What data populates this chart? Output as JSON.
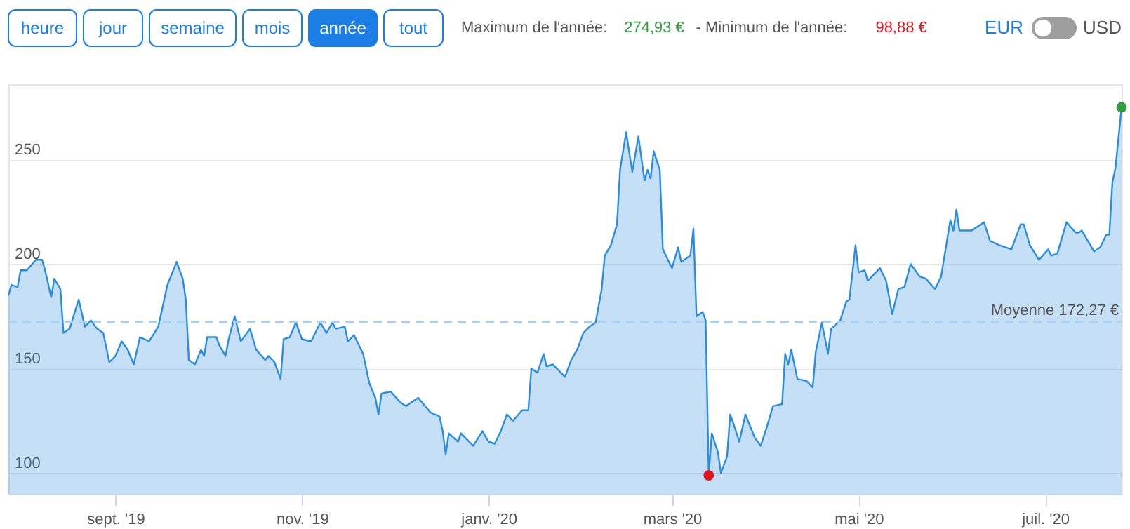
{
  "chart_data": {
    "type": "area",
    "x": [
      "2019-07-28",
      "2019-07-29",
      "2019-07-31",
      "2019-08-01",
      "2019-08-03",
      "2019-08-06",
      "2019-08-08",
      "2019-08-09",
      "2019-08-11",
      "2019-08-12",
      "2019-08-14",
      "2019-08-15",
      "2019-08-17",
      "2019-08-20",
      "2019-08-22",
      "2019-08-24",
      "2019-08-26",
      "2019-08-28",
      "2019-08-30",
      "2019-09-01",
      "2019-09-03",
      "2019-09-05",
      "2019-09-07",
      "2019-09-09",
      "2019-09-12",
      "2019-09-15",
      "2019-09-18",
      "2019-09-21",
      "2019-09-23",
      "2019-09-24",
      "2019-09-25",
      "2019-09-27",
      "2019-09-29",
      "2019-09-30",
      "2019-10-01",
      "2019-10-04",
      "2019-10-05",
      "2019-10-07",
      "2019-10-08",
      "2019-10-10",
      "2019-10-12",
      "2019-10-15",
      "2019-10-17",
      "2019-10-20",
      "2019-10-21",
      "2019-10-23",
      "2019-10-25",
      "2019-10-26",
      "2019-10-28",
      "2019-10-30",
      "2019-11-01",
      "2019-11-04",
      "2019-11-07",
      "2019-11-09",
      "2019-11-11",
      "2019-11-12",
      "2019-11-15",
      "2019-11-16",
      "2019-11-18",
      "2019-11-20",
      "2019-11-21",
      "2019-11-23",
      "2019-11-25",
      "2019-11-26",
      "2019-11-27",
      "2019-11-30",
      "2019-12-03",
      "2019-12-05",
      "2019-12-09",
      "2019-12-13",
      "2019-12-16",
      "2019-12-17",
      "2019-12-18",
      "2019-12-19",
      "2019-12-22",
      "2019-12-23",
      "2019-12-27",
      "2019-12-30",
      "2020-01-01",
      "2020-01-03",
      "2020-01-05",
      "2020-01-07",
      "2020-01-09",
      "2020-01-12",
      "2020-01-14",
      "2020-01-15",
      "2020-01-17",
      "2020-01-19",
      "2020-01-20",
      "2020-01-22",
      "2020-01-26",
      "2020-01-28",
      "2020-01-30",
      "2020-02-01",
      "2020-02-03",
      "2020-02-05",
      "2020-02-07",
      "2020-02-08",
      "2020-02-10",
      "2020-02-12",
      "2020-02-13",
      "2020-02-15",
      "2020-02-17",
      "2020-02-19",
      "2020-02-21",
      "2020-02-22",
      "2020-02-23",
      "2020-02-24",
      "2020-02-26",
      "2020-02-27",
      "2020-03-01",
      "2020-03-03",
      "2020-03-04",
      "2020-03-07",
      "2020-03-08",
      "2020-03-09",
      "2020-03-11",
      "2020-03-12",
      "2020-03-13",
      "2020-03-14",
      "2020-03-16",
      "2020-03-17",
      "2020-03-19",
      "2020-03-20",
      "2020-03-21",
      "2020-03-23",
      "2020-03-25",
      "2020-03-28",
      "2020-03-30",
      "2020-04-01",
      "2020-04-03",
      "2020-04-06",
      "2020-04-07",
      "2020-04-08",
      "2020-04-09",
      "2020-04-11",
      "2020-04-14",
      "2020-04-16",
      "2020-04-17",
      "2020-04-19",
      "2020-04-21",
      "2020-04-22",
      "2020-04-25",
      "2020-04-27",
      "2020-04-28",
      "2020-04-30",
      "2020-05-01",
      "2020-05-03",
      "2020-05-04",
      "2020-05-08",
      "2020-05-10",
      "2020-05-12",
      "2020-05-14",
      "2020-05-16",
      "2020-05-18",
      "2020-05-21",
      "2020-05-23",
      "2020-05-26",
      "2020-05-28",
      "2020-05-31",
      "2020-06-01",
      "2020-06-02",
      "2020-06-03",
      "2020-06-07",
      "2020-06-11",
      "2020-06-13",
      "2020-06-16",
      "2020-06-20",
      "2020-06-23",
      "2020-06-24",
      "2020-06-26",
      "2020-06-29",
      "2020-07-02",
      "2020-07-03",
      "2020-07-05",
      "2020-07-08",
      "2020-07-11",
      "2020-07-12",
      "2020-07-13",
      "2020-07-17",
      "2020-07-19",
      "2020-07-21",
      "2020-07-22",
      "2020-07-23",
      "2020-07-24",
      "2020-07-26"
    ],
    "series": [
      {
        "color": "#2b8de0",
        "values": [
          185,
          190,
          189,
          197,
          197,
          202,
          202,
          197,
          184,
          193,
          188,
          167,
          169,
          183,
          170,
          173,
          169,
          167,
          153,
          156,
          163,
          159,
          152,
          165,
          163,
          170,
          190,
          201,
          193,
          183,
          154,
          152,
          159,
          156,
          165,
          165,
          161,
          156,
          164,
          175,
          163,
          169,
          159,
          154,
          156,
          153,
          145,
          164,
          165,
          172,
          164,
          163,
          172,
          167,
          172,
          169,
          170,
          163,
          166,
          160,
          157,
          143,
          136,
          128,
          138,
          139,
          134,
          132,
          136,
          129,
          127,
          120,
          109,
          119,
          115,
          119,
          113,
          120,
          115,
          114,
          120,
          128,
          125,
          130,
          130,
          150,
          148,
          157,
          151,
          152,
          146,
          154,
          159,
          167,
          170,
          172,
          188,
          204,
          209,
          219,
          245,
          263,
          244,
          261,
          240,
          245,
          241,
          254,
          245,
          207,
          198,
          208,
          201,
          204,
          217,
          175,
          177,
          173,
          98.88,
          119,
          110,
          100,
          108,
          128,
          124,
          115,
          128,
          117,
          113,
          122,
          132,
          133,
          157,
          152,
          159,
          145,
          144,
          141,
          158,
          172,
          157,
          169,
          173,
          182,
          183,
          209,
          196,
          197,
          192,
          198,
          192,
          176,
          188,
          189,
          200,
          194,
          193,
          188,
          194,
          221,
          216,
          226,
          216,
          216,
          220,
          211,
          209,
          207,
          219,
          219,
          209,
          202,
          207,
          204,
          205,
          220,
          215,
          215,
          216,
          206,
          208,
          214,
          214,
          239,
          246,
          274.93
        ]
      },
      {
        "type": "scatter",
        "x": [
          "2020-03-13",
          "2020-07-26"
        ],
        "values": [
          98.88,
          274.93
        ],
        "colors": [
          "#e8121c",
          "#2e9e3e"
        ]
      }
    ],
    "xlim": [
      "2019-07-28",
      "2020-07-26"
    ],
    "xticks": [
      {
        "value": "2019-09-01",
        "label": "sept. '19"
      },
      {
        "value": "2019-11-01",
        "label": "nov. '19"
      },
      {
        "value": "2020-01-01",
        "label": "janv. '20"
      },
      {
        "value": "2020-03-01",
        "label": "mars '20"
      },
      {
        "value": "2020-05-01",
        "label": "mai '20"
      },
      {
        "value": "2020-07-01",
        "label": "juil. '20"
      }
    ],
    "ylim": [
      90,
      286
    ],
    "yticks": [
      100,
      150,
      200,
      250
    ],
    "grid": "y",
    "ref_lines": [
      {
        "axis": "y",
        "value": 172.27,
        "label": "Moyenne 172,27 €",
        "color": "#a9d0f5",
        "line_style": "dashed"
      }
    ],
    "annotations": [
      "heure",
      "jour",
      "semaine",
      "mois",
      "année",
      "tout",
      "Maximum de l'année:",
      "274,93 €",
      "- Minimum de l'année:",
      "98,88 €",
      "EUR",
      "USD"
    ]
  }
}
